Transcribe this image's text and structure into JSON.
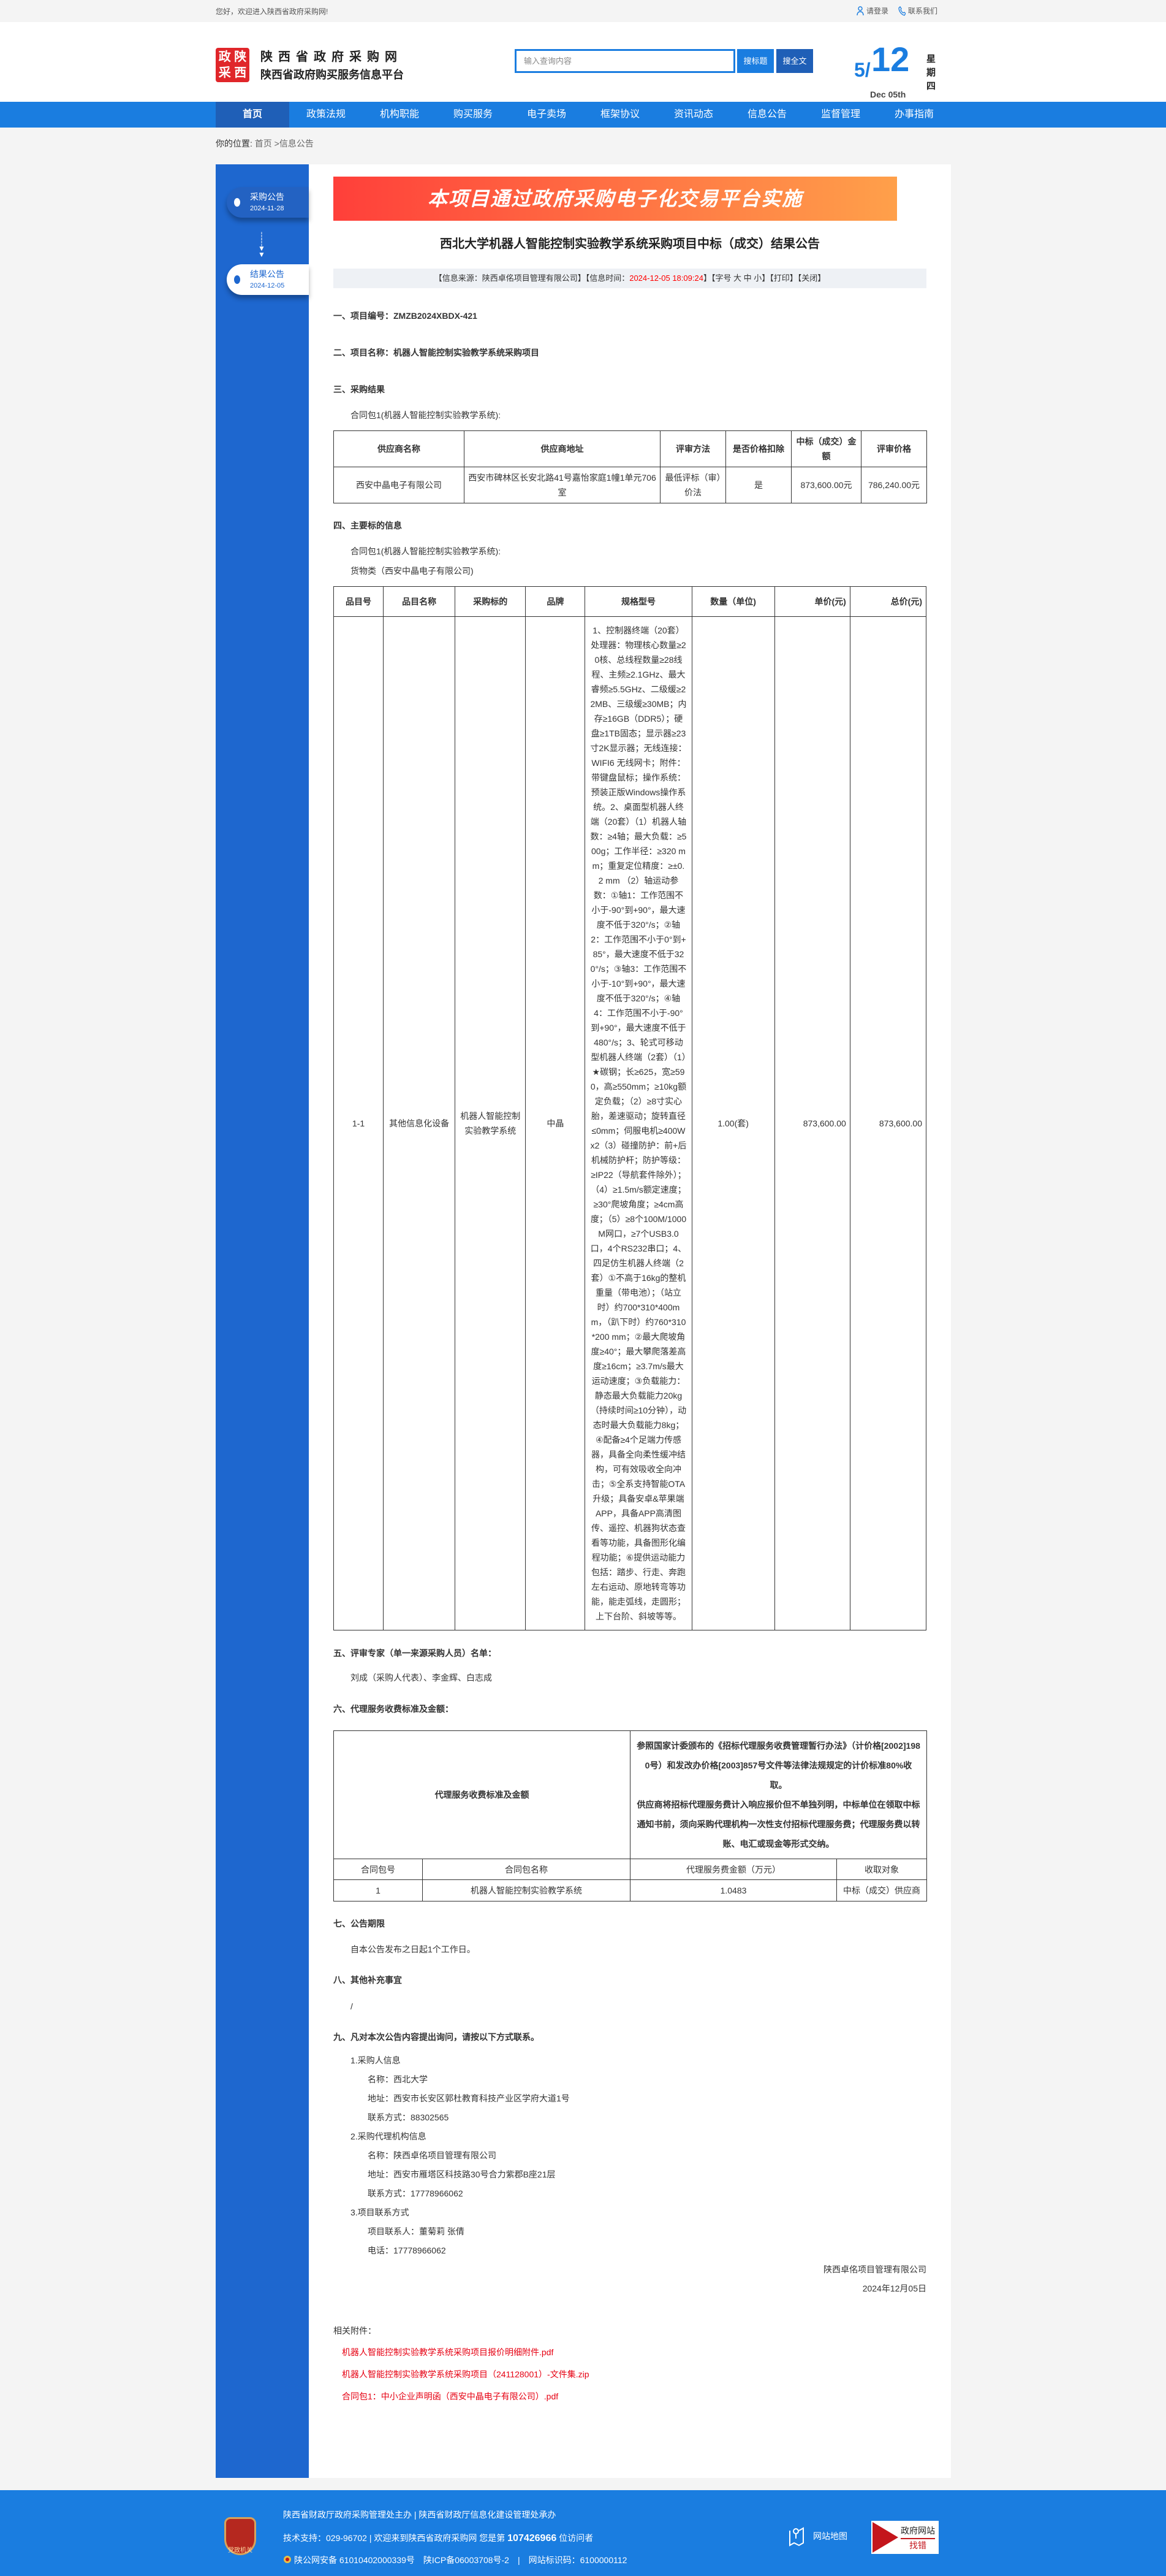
{
  "topbar": {
    "welcome": "您好，欢迎进入陕西省政府采购网!",
    "login": "请登录",
    "contact": "联系我们"
  },
  "header": {
    "logo_text": [
      "政",
      "陕",
      "采",
      "西"
    ],
    "site_title": "陕西省政府采购网",
    "site_subtitle": "陕西省政府购买服务信息平台",
    "search_placeholder": "输入查询内容",
    "btn_title": "搜标题",
    "btn_full": "搜全文",
    "date_month": "5/",
    "date_day": "12",
    "date_en": "Dec 05th",
    "weekday": "星期四"
  },
  "nav": [
    "首页",
    "政策法规",
    "机构职能",
    "购买服务",
    "电子卖场",
    "框架协议",
    "资讯动态",
    "信息公告",
    "监督管理",
    "办事指南"
  ],
  "breadcrumb": {
    "label": "你的位置:",
    "home": "首页",
    "current": " >信息公告"
  },
  "sidebar": [
    {
      "label": "采购公告",
      "date": "2024-11-28"
    },
    {
      "label": "结果公告",
      "date": "2024-12-05"
    }
  ],
  "banner": "本项目通过政府采购电子化交易平台实施",
  "title": "西北大学机器人智能控制实验教学系统采购项目中标（成交）结果公告",
  "info": {
    "source": "【信息来源：陕西卓佲项目管理有限公司】【信息时间：",
    "time": "2024-12-05 18:09:24",
    "rest": "】【字号 大 中 小】【打印】【关闭】"
  },
  "s1": {
    "label": "一、项目编号：",
    "value": "ZMZB2024XBDX-421"
  },
  "s2": "二、项目名称：机器人智能控制实验教学系统采购项目",
  "s3": {
    "heading": "三、采购结果",
    "pkg": "合同包1(机器人智能控制实验教学系统):",
    "headers": [
      "供应商名称",
      "供应商地址",
      "评审方法",
      "是否价格扣除",
      "中标（成交）金额",
      "评审价格"
    ],
    "row": [
      "西安中晶电子有限公司",
      "西安市碑林区长安北路41号嘉怡家庭1幢1单元706室",
      "最低评标（审）价法",
      "是",
      "873,600.00元",
      "786,240.00元"
    ]
  },
  "s4": {
    "heading": "四、主要标的信息",
    "pkg": "合同包1(机器人智能控制实验教学系统):",
    "type": "货物类（西安中晶电子有限公司)",
    "headers": [
      "品目号",
      "品目名称",
      "采购标的",
      "品牌",
      "规格型号",
      "数量（单位)",
      "单价(元)",
      "总价(元)"
    ],
    "row": [
      "1-1",
      "其他信息化设备",
      "机器人智能控制实验教学系统",
      "中晶",
      "1、控制器终端（20套）处理器：物理核心数量≥20核、总线程数量≥28线程、主频≥2.1GHz、最大睿频≥5.5GHz、二级缓≥22MB、三级缓≥30MB；内存≥16GB（DDR5）；硬盘≥1TB固态；显示器≥23寸2K显示器；无线连接：WIFI6 无线网卡；附件：带键盘鼠标；操作系统：预装正版Windows操作系统。2、桌面型机器人终端（20套）（1）机器人轴数：≥4轴；最大负载：≥500g；工作半径：≥320 mm；重复定位精度：≥±0.2 mm （2）轴运动参数：①轴1：工作范围不小于-90°到+90°，最大速度不低于320°/s；②轴2：工作范围不小于0°到+85°，最大速度不低于320°/s；③轴3：工作范围不小于-10°到+90°，最大速度不低于320°/s；④轴4：工作范围不小于-90°到+90°，最大速度不低于480°/s；3、轮式可移动型机器人终端（2套）（1）★碳钢；长≥625，宽≥590，高≥550mm；≥10kg额定负载；（2）≥8寸实心胎，差速驱动；旋转直径≤0mm；伺服电机≥400Wx2（3）碰撞防护：前+后机械防护杆；防护等级：≥IP22（导航套件除外）；（4）≥1.5m/s额定速度；≥30°爬坡角度；≥4cm高度；（5）≥8个100M/1000M网口，≥7个USB3.0口，4个RS232串口；4、四足仿生机器人终端（2套）①不高于16kg的整机重量（带电池）；（站立时）约700*310*400mm，（趴下时）约760*310*200 mm；②最大爬坡角度≥40°；最大攀爬落差高度≥16cm；≥3.7m/s最大运动速度；③负载能力：静态最大负载能力20kg（持续时间≥10分钟），动态时最大负载能力8kg；④配备≥4个足端力传感器，具备全向柔性缓冲结构，可有效吸收全向冲击；⑤全系支持智能OTA升级；具备安卓&苹果端APP，具备APP高清图传、遥控、机器狗状态查看等功能，具备图形化编程功能；⑥提供运动能力包括：踏步、行走、奔跑左右运动、原地转弯等功能，能走弧线，走圆形；上下台阶、斜坡等等。",
      "1.00(套)",
      "873,600.00",
      "873,600.00"
    ]
  },
  "s5": {
    "heading": "五、评审专家（单一来源采购人员）名单：",
    "names": "刘成（采购人代表）、李金辉、白志成"
  },
  "s6": {
    "heading": "六、代理服务收费标准及金额：",
    "label": "代理服务收费标准及金额",
    "desc1": "参照国家计委颁布的《招标代理服务收费管理暂行办法》（计价格[2002]1980号）和发改办价格[2003]857号文件等法律法规规定的计价标准80%收取。",
    "desc2": "供应商将招标代理服务费计入响应报价但不单独列明，中标单位在领取中标通知书前，须向采购代理机构一次性支付招标代理服务费；代理服务费以转账、电汇或现金等形式交纳。",
    "headers": [
      "合同包号",
      "合同包名称",
      "代理服务费金额（万元）",
      "收取对象"
    ],
    "row": [
      "1",
      "机器人智能控制实验教学系统",
      "1.0483",
      "中标（成交）供应商"
    ]
  },
  "s7": {
    "heading": "七、公告期限",
    "text": "自本公告发布之日起1个工作日。"
  },
  "s8": {
    "heading": "八、其他补充事宜",
    "text": "/"
  },
  "s9": {
    "heading": "九、凡对本次公告内容提出询问，请按以下方式联系。",
    "buyer": {
      "title": "1.采购人信息",
      "name": "名称：西北大学",
      "addr": "地址：西安市长安区郭杜教育科技产业区学府大道1号",
      "phone": "联系方式：88302565"
    },
    "agent": {
      "title": "2.采购代理机构信息",
      "name": "名称：陕西卓佲项目管理有限公司",
      "addr": "地址：西安市雁塔区科技路30号合力紫郡B座21层",
      "phone": "联系方式：17778966062"
    },
    "project": {
      "title": "3.项目联系方式",
      "person": "项目联系人：董菊莉 张倩",
      "phone": "电话：17778966062"
    },
    "sign_company": "陕西卓佲项目管理有限公司",
    "sign_date": "2024年12月05日"
  },
  "attachments": {
    "title": "相关附件：",
    "files": [
      "机器人智能控制实验教学系统采购项目报价明细附件.pdf",
      "机器人智能控制实验教学系统采购项目（241128001）-文件集.zip",
      "合同包1：中小企业声明函（西安中晶电子有限公司）.pdf"
    ]
  },
  "footer": {
    "logo_text": "党政机关",
    "line1": "陕西省财政厅政府采购管理处主办 | 陕西省财政厅信息化建设管理处承办",
    "line2_a": "技术支持：029-96702 | 欢迎来到陕西省政府采购网 您是第 ",
    "visitors": "107426966",
    "line2_b": " 位访问者",
    "line3": "陕公网安备 61010402000339号　陕ICP备06003708号-2　|　网站标识码：6100000112",
    "sitemap": "网站地图",
    "err_top": "政府网站",
    "err_bottom": "找错"
  },
  "colors": {
    "brand_blue": "#1a7de0",
    "nav_active": "#1f5fb7",
    "sidebar": "#1e67cf",
    "alert_red": "#ff0000",
    "link_red": "#e60012"
  }
}
